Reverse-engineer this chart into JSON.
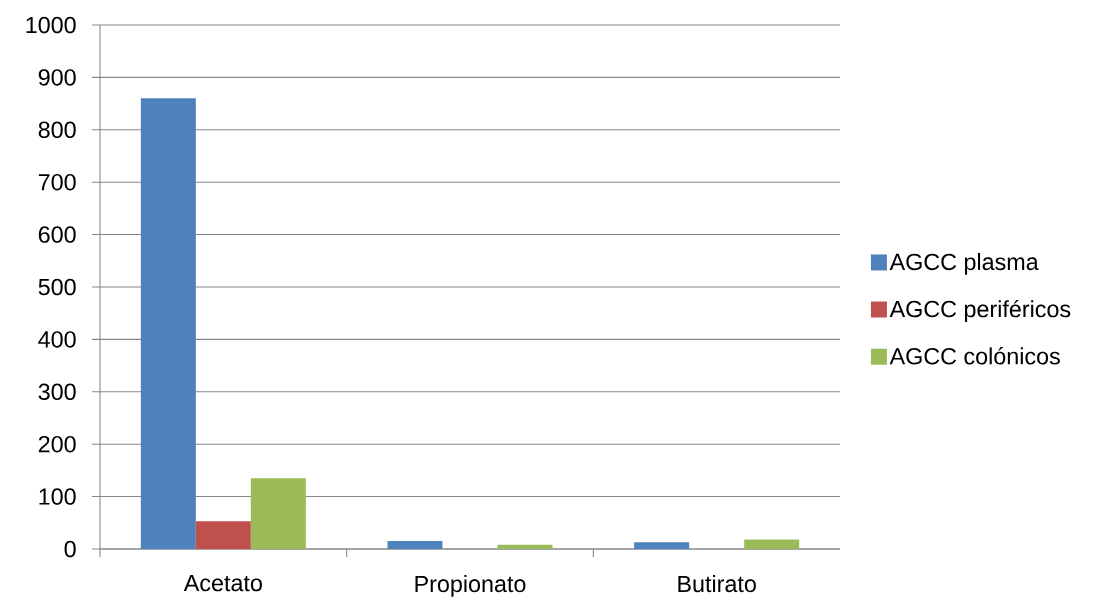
{
  "chart_data": {
    "type": "bar",
    "categories": [
      "Acetato",
      "Propionato",
      "Butirato"
    ],
    "series": [
      {
        "name": "AGCC plasma",
        "color": "#4f81bd",
        "values": [
          860,
          15,
          13
        ]
      },
      {
        "name": "AGCC periféricos",
        "color": "#c0504d",
        "values": [
          53,
          null,
          null
        ]
      },
      {
        "name": "AGCC colónicos",
        "color": "#9bbb59",
        "values": [
          135,
          8,
          18
        ]
      }
    ],
    "ylim": [
      0,
      1000
    ],
    "yticks": [
      0,
      100,
      200,
      300,
      400,
      500,
      600,
      700,
      800,
      900,
      1000
    ],
    "grid": "y",
    "legend": "right"
  }
}
